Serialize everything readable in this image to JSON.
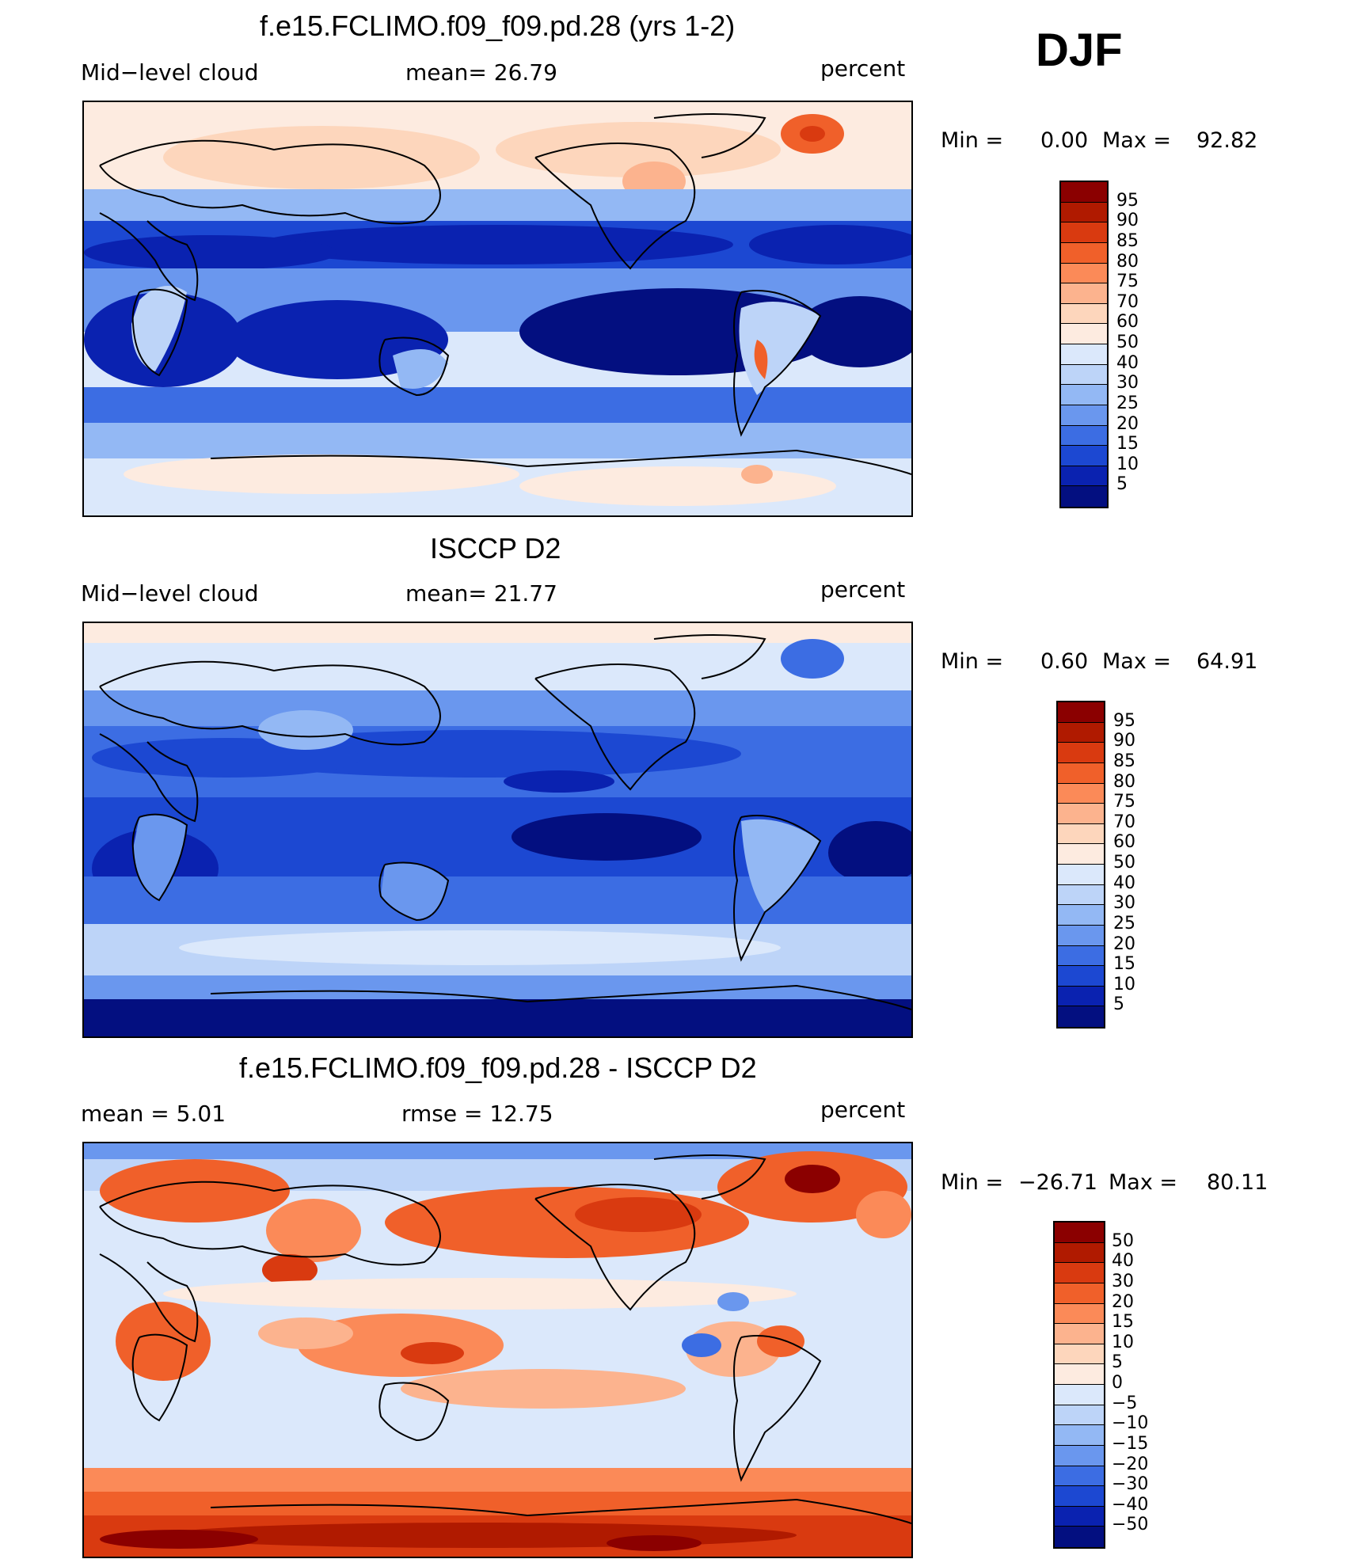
{
  "season": "DJF",
  "panels": [
    {
      "title": "f.e15.FCLIMO.f09_f09.pd.28 (yrs 1-2)",
      "left_label": "Mid−level cloud",
      "center_label": "mean=   26.79",
      "right_label": "percent",
      "min_text": "Min =",
      "min_value": "0.00",
      "max_text": "Max =",
      "max_value": "92.82",
      "colorbar_labels": [
        "95",
        "90",
        "85",
        "80",
        "75",
        "70",
        "60",
        "50",
        "40",
        "30",
        "25",
        "20",
        "15",
        "10",
        "5"
      ],
      "colorbar_colors": [
        "#8b0000",
        "#b01a00",
        "#d93a10",
        "#f0602a",
        "#fb8a58",
        "#fcb38e",
        "#fdd6bc",
        "#fdebe0",
        "#dbe8fb",
        "#bdd4f8",
        "#93b8f4",
        "#6a97ee",
        "#3c6de3",
        "#1c48d2",
        "#0a22b0",
        "#030f80"
      ]
    },
    {
      "title": "ISCCP D2",
      "left_label": "Mid−level cloud",
      "center_label": "mean=   21.77",
      "right_label": "percent",
      "min_text": "Min =",
      "min_value": "0.60",
      "max_text": "Max =",
      "max_value": "64.91",
      "colorbar_labels": [
        "95",
        "90",
        "85",
        "80",
        "75",
        "70",
        "60",
        "50",
        "40",
        "30",
        "25",
        "20",
        "15",
        "10",
        "5"
      ],
      "colorbar_colors": [
        "#8b0000",
        "#b01a00",
        "#d93a10",
        "#f0602a",
        "#fb8a58",
        "#fcb38e",
        "#fdd6bc",
        "#fdebe0",
        "#dbe8fb",
        "#bdd4f8",
        "#93b8f4",
        "#6a97ee",
        "#3c6de3",
        "#1c48d2",
        "#0a22b0",
        "#030f80"
      ]
    },
    {
      "title": "f.e15.FCLIMO.f09_f09.pd.28 - ISCCP D2",
      "left_label": "mean =     5.01",
      "center_label": "rmse =    12.75",
      "right_label": "percent",
      "min_text": "Min =",
      "min_value": "−26.71",
      "max_text": "Max =",
      "max_value": "80.11",
      "colorbar_labels": [
        "50",
        "40",
        "30",
        "20",
        "15",
        "10",
        "5",
        "0",
        "−5",
        "−10",
        "−15",
        "−20",
        "−30",
        "−40",
        "−50"
      ],
      "colorbar_colors": [
        "#8b0000",
        "#b01a00",
        "#d93a10",
        "#f0602a",
        "#fb8a58",
        "#fcb38e",
        "#fdd6bc",
        "#fdebe0",
        "#dbe8fb",
        "#bdd4f8",
        "#93b8f4",
        "#6a97ee",
        "#3c6de3",
        "#1c48d2",
        "#0a22b0",
        "#030f80"
      ]
    }
  ]
}
